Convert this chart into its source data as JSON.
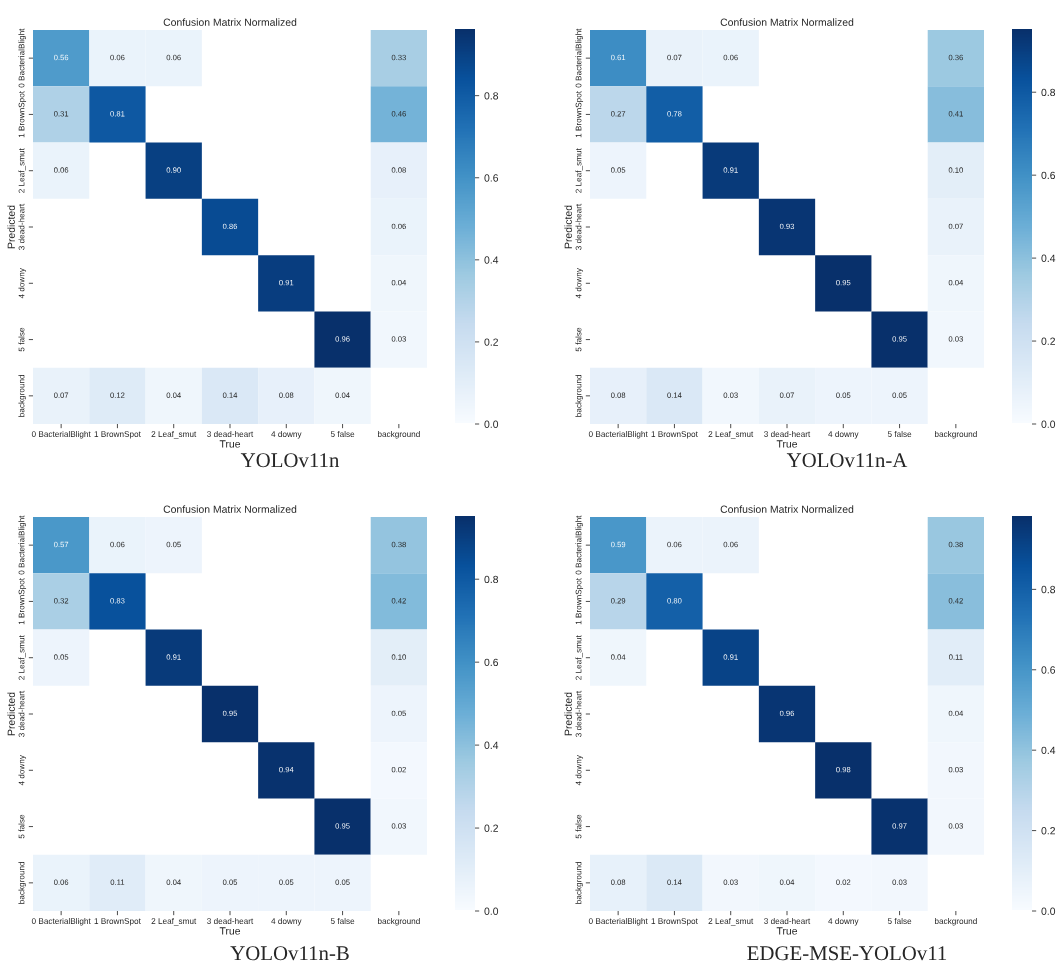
{
  "chart_data": [
    {
      "type": "heatmap",
      "title": "Confusion Matrix Normalized",
      "xlabel": "True",
      "ylabel": "Predicted",
      "categories": [
        "0 BacterialBlight",
        "1 BrownSpot",
        "2 Leaf_smut",
        "3 dead-heart",
        "4 downy",
        "5 false",
        "background"
      ],
      "y_categories": [
        "0 BacterialBlight",
        "1 BrownSpot",
        "2 Leaf_smut",
        "3 dead-heart",
        "4 downy",
        "5 false",
        "background"
      ],
      "cells": [
        [
          0.56,
          0.06,
          0.06,
          null,
          null,
          null,
          0.33
        ],
        [
          0.31,
          0.81,
          null,
          null,
          null,
          null,
          0.46
        ],
        [
          0.06,
          null,
          0.9,
          null,
          null,
          null,
          0.08
        ],
        [
          null,
          null,
          null,
          0.86,
          null,
          null,
          0.06
        ],
        [
          null,
          null,
          null,
          null,
          0.91,
          null,
          0.04
        ],
        [
          null,
          null,
          null,
          null,
          null,
          0.96,
          0.03
        ],
        [
          0.07,
          0.12,
          0.04,
          0.14,
          0.08,
          0.04,
          null
        ]
      ],
      "cell_labels": [
        [
          "0.56",
          "0.06",
          "0.06",
          null,
          null,
          null,
          "0.33"
        ],
        [
          "0.31",
          "0.81",
          null,
          null,
          null,
          null,
          "0.46"
        ],
        [
          "0.06",
          null,
          "0.90",
          null,
          null,
          null,
          "0.08"
        ],
        [
          null,
          null,
          null,
          "0.86",
          null,
          null,
          "0.06"
        ],
        [
          null,
          null,
          null,
          null,
          "0.91",
          null,
          "0.04"
        ],
        [
          null,
          null,
          null,
          null,
          null,
          "0.96",
          "0.03"
        ],
        [
          "0.07",
          "0.12",
          "0.04",
          "0.14",
          "0.08",
          "0.04",
          null
        ]
      ],
      "clim": [
        0,
        0.96
      ],
      "cticks": [
        {
          "value": 0,
          "label": "0.0"
        },
        {
          "value": 0.2,
          "label": "0.2"
        },
        {
          "value": 0.4,
          "label": "0.4"
        },
        {
          "value": 0.6,
          "label": "0.6"
        },
        {
          "value": 0.8,
          "label": "0.8"
        }
      ],
      "annotations": [
        "YOLOv11n"
      ]
    },
    {
      "type": "heatmap",
      "title": "Confusion Matrix Normalized",
      "xlabel": "True",
      "ylabel": "Predicted",
      "categories": [
        "0 BacterialBlight",
        "1 BrownSpot",
        "2 Leaf_smut",
        "3 dead-heart",
        "4 downy",
        "5 false",
        "background"
      ],
      "y_categories": [
        "0 BacterialBlight",
        "1 BrownSpot",
        "2 Leaf_smut",
        "3 dead-heart",
        "4 downy",
        "5 false",
        "background"
      ],
      "cells": [
        [
          0.61,
          0.07,
          0.06,
          null,
          null,
          null,
          0.36
        ],
        [
          0.27,
          0.78,
          null,
          null,
          null,
          null,
          0.41
        ],
        [
          0.05,
          null,
          0.91,
          null,
          null,
          null,
          0.1
        ],
        [
          null,
          null,
          null,
          0.93,
          null,
          null,
          0.07
        ],
        [
          null,
          null,
          null,
          null,
          0.95,
          null,
          0.04
        ],
        [
          null,
          null,
          null,
          null,
          null,
          0.95,
          0.03
        ],
        [
          0.08,
          0.14,
          0.03,
          0.07,
          0.05,
          0.05,
          null
        ]
      ],
      "cell_labels": [
        [
          "0.61",
          "0.07",
          "0.06",
          null,
          null,
          null,
          "0.36"
        ],
        [
          "0.27",
          "0.78",
          null,
          null,
          null,
          null,
          "0.41"
        ],
        [
          "0.05",
          null,
          "0.91",
          null,
          null,
          null,
          "0.10"
        ],
        [
          null,
          null,
          null,
          "0.93",
          null,
          null,
          "0.07"
        ],
        [
          null,
          null,
          null,
          null,
          "0.95",
          null,
          "0.04"
        ],
        [
          null,
          null,
          null,
          null,
          null,
          "0.95",
          "0.03"
        ],
        [
          "0.08",
          "0.14",
          "0.03",
          "0.07",
          "0.05",
          "0.05",
          null
        ]
      ],
      "clim": [
        0,
        0.95
      ],
      "cticks": [
        {
          "value": 0,
          "label": "0.0"
        },
        {
          "value": 0.2,
          "label": "0.2"
        },
        {
          "value": 0.4,
          "label": "0.4"
        },
        {
          "value": 0.6,
          "label": "0.6"
        },
        {
          "value": 0.8,
          "label": "0.8"
        }
      ],
      "annotations": [
        "YOLOv11n-A"
      ]
    },
    {
      "type": "heatmap",
      "title": "Confusion Matrix Normalized",
      "xlabel": "True",
      "ylabel": "Predicted",
      "categories": [
        "0 BacterialBlight",
        "1 BrownSpot",
        "2 Leaf_smut",
        "3 dead-heart",
        "4 downy",
        "5 false",
        "background"
      ],
      "y_categories": [
        "0 BacterialBlight",
        "1 BrownSpot",
        "2 Leaf_smut",
        "3 dead-heart",
        "4 downy",
        "5 false",
        "background"
      ],
      "cells": [
        [
          0.57,
          0.06,
          0.05,
          null,
          null,
          null,
          0.38
        ],
        [
          0.32,
          0.83,
          null,
          null,
          null,
          null,
          0.42
        ],
        [
          0.05,
          null,
          0.91,
          null,
          null,
          null,
          0.1
        ],
        [
          null,
          null,
          null,
          0.95,
          null,
          null,
          0.05
        ],
        [
          null,
          null,
          null,
          null,
          0.94,
          null,
          0.02
        ],
        [
          null,
          null,
          null,
          null,
          null,
          0.95,
          0.03
        ],
        [
          0.06,
          0.11,
          0.04,
          0.05,
          0.05,
          0.05,
          null
        ]
      ],
      "cell_labels": [
        [
          "0.57",
          "0.06",
          "0.05",
          null,
          null,
          null,
          "0.38"
        ],
        [
          "0.32",
          "0.83",
          null,
          null,
          null,
          null,
          "0.42"
        ],
        [
          "0.05",
          null,
          "0.91",
          null,
          null,
          null,
          "0.10"
        ],
        [
          null,
          null,
          null,
          "0.95",
          null,
          null,
          "0.05"
        ],
        [
          null,
          null,
          null,
          null,
          "0.94",
          null,
          "0.02"
        ],
        [
          null,
          null,
          null,
          null,
          null,
          "0.95",
          "0.03"
        ],
        [
          "0.06",
          "0.11",
          "0.04",
          "0.05",
          "0.05",
          "0.05",
          null
        ]
      ],
      "clim": [
        0,
        0.95
      ],
      "cticks": [
        {
          "value": 0,
          "label": "0.0"
        },
        {
          "value": 0.2,
          "label": "0.2"
        },
        {
          "value": 0.4,
          "label": "0.4"
        },
        {
          "value": 0.6,
          "label": "0.6"
        },
        {
          "value": 0.8,
          "label": "0.8"
        }
      ],
      "annotations": [
        "YOLOv11n-B"
      ]
    },
    {
      "type": "heatmap",
      "title": "Confusion Matrix Normalized",
      "xlabel": "True",
      "ylabel": "Predicted",
      "categories": [
        "0 BacterialBlight",
        "1 BrownSpot",
        "2 Leaf_smut",
        "3 dead-heart",
        "4 downy",
        "5 false",
        "background"
      ],
      "y_categories": [
        "0 BacterialBlight",
        "1 BrownSpot",
        "2 Leaf_smut",
        "3 dead-heart",
        "4 downy",
        "5 false",
        "background"
      ],
      "cells": [
        [
          0.59,
          0.06,
          0.06,
          null,
          null,
          null,
          0.38
        ],
        [
          0.29,
          0.8,
          null,
          null,
          null,
          null,
          0.42
        ],
        [
          0.04,
          null,
          0.91,
          null,
          null,
          null,
          0.11
        ],
        [
          null,
          null,
          null,
          0.96,
          null,
          null,
          0.04
        ],
        [
          null,
          null,
          null,
          null,
          0.98,
          null,
          0.03
        ],
        [
          null,
          null,
          null,
          null,
          null,
          0.97,
          0.03
        ],
        [
          0.08,
          0.14,
          0.03,
          0.04,
          0.02,
          0.03,
          null
        ]
      ],
      "cell_labels": [
        [
          "0.59",
          "0.06",
          "0.06",
          null,
          null,
          null,
          "0.38"
        ],
        [
          "0.29",
          "0.80",
          null,
          null,
          null,
          null,
          "0.42"
        ],
        [
          "0.04",
          null,
          "0.91",
          null,
          null,
          null,
          "0.11"
        ],
        [
          null,
          null,
          null,
          "0.96",
          null,
          null,
          "0.04"
        ],
        [
          null,
          null,
          null,
          null,
          "0.98",
          null,
          "0.03"
        ],
        [
          null,
          null,
          null,
          null,
          null,
          "0.97",
          "0.03"
        ],
        [
          "0.08",
          "0.14",
          "0.03",
          "0.04",
          "0.02",
          "0.03",
          null
        ]
      ],
      "clim": [
        0,
        0.98
      ],
      "cticks": [
        {
          "value": 0,
          "label": "0.0"
        },
        {
          "value": 0.2,
          "label": "0.2"
        },
        {
          "value": 0.4,
          "label": "0.4"
        },
        {
          "value": 0.6,
          "label": "0.6"
        },
        {
          "value": 0.8,
          "label": "0.8"
        }
      ],
      "annotations": [
        "EDGE-MSE-YOLOv11"
      ]
    }
  ]
}
